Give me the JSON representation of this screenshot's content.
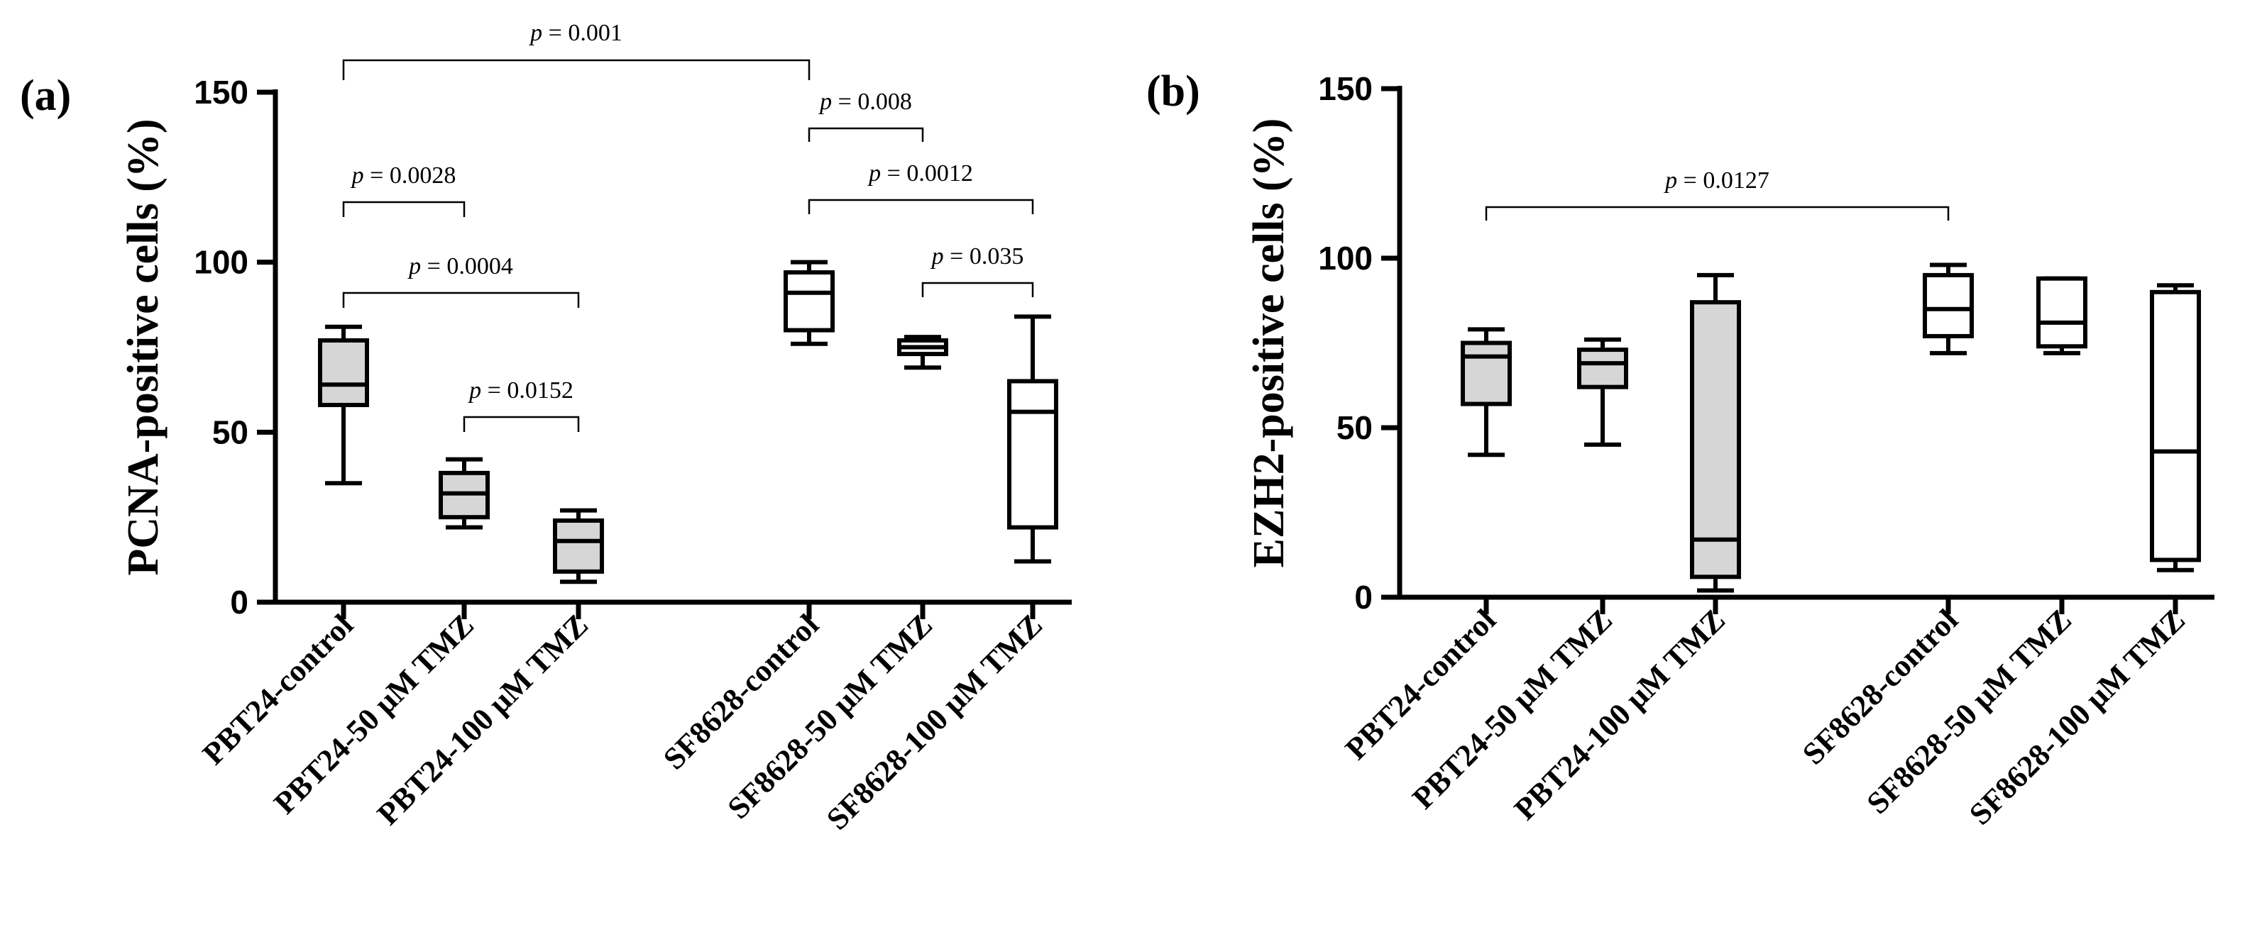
{
  "chart_data": [
    {
      "type": "box",
      "panel_label": "(a)",
      "ylabel": "PCNA-positive cells (%)",
      "ylim": [
        0,
        150
      ],
      "yticks": [
        0,
        50,
        100,
        150
      ],
      "categories": [
        "PBT24-control",
        "PBT24-50 μM TMZ",
        "PBT24-100 μM TMZ",
        "SF8628-control",
        "SF8628-50 μM TMZ",
        "SF8628-100 μM TMZ"
      ],
      "fills": [
        "#d6d6d6",
        "#d6d6d6",
        "#d6d6d6",
        "#ffffff",
        "#ffffff",
        "#ffffff"
      ],
      "boxes": [
        {
          "min": 35,
          "q1": 58,
          "median": 64,
          "q3": 77,
          "max": 81
        },
        {
          "min": 22,
          "q1": 25,
          "median": 32,
          "q3": 38,
          "max": 42
        },
        {
          "min": 6,
          "q1": 9,
          "median": 18,
          "q3": 24,
          "max": 27
        },
        {
          "min": 76,
          "q1": 80,
          "median": 91,
          "q3": 97,
          "max": 100
        },
        {
          "min": 69,
          "q1": 73,
          "median": 75,
          "q3": 77,
          "max": 78
        },
        {
          "min": 12,
          "q1": 22,
          "median": 56,
          "q3": 65,
          "max": 84
        }
      ],
      "comparisons": [
        {
          "from": 0,
          "to": 3,
          "label": "= 0.001"
        },
        {
          "from": 3,
          "to": 4,
          "label": "= 0.008"
        },
        {
          "from": 0,
          "to": 1,
          "label": "= 0.0028"
        },
        {
          "from": 3,
          "to": 5,
          "label": "= 0.0012"
        },
        {
          "from": 0,
          "to": 2,
          "label": "= 0.0004"
        },
        {
          "from": 4,
          "to": 5,
          "label": "= 0.035"
        },
        {
          "from": 1,
          "to": 2,
          "label": "= 0.0152"
        }
      ],
      "p_symbol": "p"
    },
    {
      "type": "box",
      "panel_label": "(b)",
      "ylabel": "EZH2-positive cells (%)",
      "ylim": [
        0,
        150
      ],
      "yticks": [
        0,
        50,
        100,
        150
      ],
      "categories": [
        "PBT24-control",
        "PBT24-50 μM TMZ",
        "PBT24-100 μM TMZ",
        "SF8628-control",
        "SF8628-50 μM TMZ",
        "SF8628-100 μM TMZ"
      ],
      "fills": [
        "#d6d6d6",
        "#d6d6d6",
        "#d6d6d6",
        "#ffffff",
        "#ffffff",
        "#ffffff"
      ],
      "boxes": [
        {
          "min": 42,
          "q1": 57,
          "median": 71,
          "q3": 75,
          "max": 79
        },
        {
          "min": 45,
          "q1": 62,
          "median": 69,
          "q3": 73,
          "max": 76
        },
        {
          "min": 2,
          "q1": 6,
          "median": 17,
          "q3": 87,
          "max": 95
        },
        {
          "min": 72,
          "q1": 77,
          "median": 85,
          "q3": 95,
          "max": 98
        },
        {
          "min": 72,
          "q1": 74,
          "median": 81,
          "q3": 94,
          "max": 94
        },
        {
          "min": 8,
          "q1": 11,
          "median": 43,
          "q3": 90,
          "max": 92
        }
      ],
      "comparisons": [
        {
          "from": 0,
          "to": 3,
          "label": "= 0.0127"
        }
      ],
      "p_symbol": "p"
    }
  ]
}
